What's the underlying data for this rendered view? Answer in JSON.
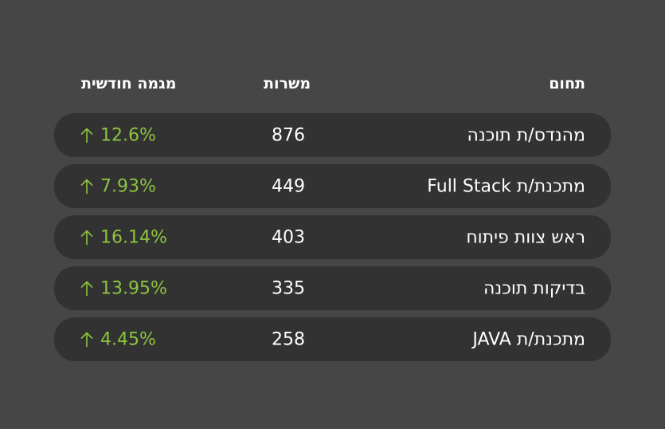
{
  "header": {
    "field": "תחום",
    "jobs": "משרות",
    "trend": "מגמה חודשית"
  },
  "accent_color": "#8cc43e",
  "rows": [
    {
      "field": "מהנדס/ת תוכנה",
      "jobs": "876",
      "trend": "12.6%",
      "trend_icon": "arrow-up-icon"
    },
    {
      "field": "מתכנת/ת Full Stack",
      "jobs": "449",
      "trend": "7.93%",
      "trend_icon": "arrow-up-icon"
    },
    {
      "field": "ראש צוות פיתוח",
      "jobs": "403",
      "trend": "16.14%",
      "trend_icon": "arrow-up-icon"
    },
    {
      "field": "בדיקות תוכנה",
      "jobs": "335",
      "trend": "13.95%",
      "trend_icon": "arrow-up-icon"
    },
    {
      "field": "מתכנת/ת JAVA",
      "jobs": "258",
      "trend": "4.45%",
      "trend_icon": "arrow-up-icon"
    }
  ]
}
